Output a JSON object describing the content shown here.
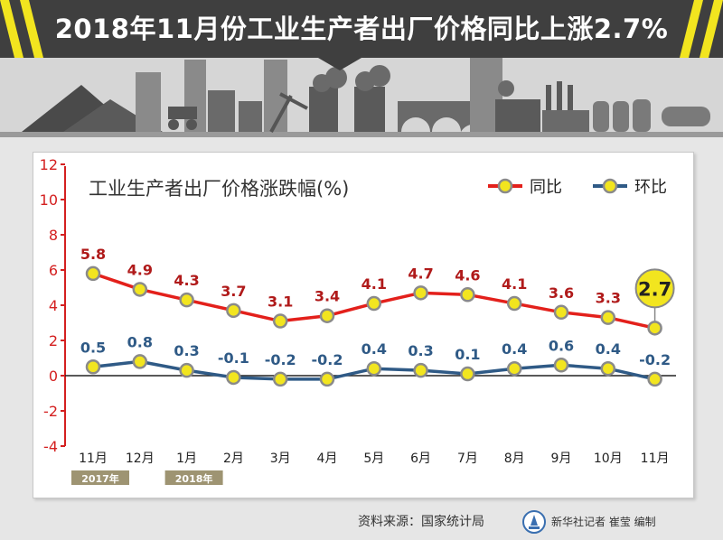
{
  "banner": {
    "title": "2018年11月份工业生产者出厂价格同比上涨2.7%"
  },
  "colors": {
    "banner_bg": "#3f3f3f",
    "accent_yellow": "#f2e51f",
    "series_yoy": "#e3201b",
    "series_mom": "#2f5a86",
    "axis_red": "#d42020",
    "label_red": "#b01a1a",
    "label_blue": "#2f5a86"
  },
  "chart_data": {
    "type": "line",
    "title": "工业生产者出厂价格涨跌幅(%)",
    "ylim": [
      -4,
      12
    ],
    "yticks": [
      "12",
      "10",
      "8",
      "6",
      "4",
      "2",
      "0",
      "-2",
      "-4"
    ],
    "categories": [
      "11月",
      "12月",
      "1月",
      "2月",
      "3月",
      "4月",
      "5月",
      "6月",
      "7月",
      "8月",
      "9月",
      "10月",
      "11月"
    ],
    "year_tags": [
      {
        "label": "2017年",
        "category_index": 0
      },
      {
        "label": "2018年",
        "category_index": 2
      }
    ],
    "series": [
      {
        "name": "同比",
        "values": [
          5.8,
          4.9,
          4.3,
          3.7,
          3.1,
          3.4,
          4.1,
          4.7,
          4.6,
          4.1,
          3.6,
          3.3,
          2.7
        ],
        "labels": [
          "5.8",
          "4.9",
          "4.3",
          "3.7",
          "3.1",
          "3.4",
          "4.1",
          "4.7",
          "4.6",
          "4.1",
          "3.6",
          "3.3",
          "2.7"
        ]
      },
      {
        "name": "环比",
        "values": [
          0.5,
          0.8,
          0.3,
          -0.1,
          -0.2,
          -0.2,
          0.4,
          0.3,
          0.1,
          0.4,
          0.6,
          0.4,
          -0.2
        ],
        "labels": [
          "0.5",
          "0.8",
          "0.3",
          "-0.1",
          "-0.2",
          "-0.2",
          "0.4",
          "0.3",
          "0.1",
          "0.4",
          "0.6",
          "0.4",
          "-0.2"
        ]
      }
    ],
    "highlight": {
      "series": "同比",
      "index": 12,
      "label": "2.7"
    },
    "legend": "top-right",
    "grid": false
  },
  "footer": {
    "source": "资料来源：国家统计局",
    "credit": "新华社记者 崔莹 编制"
  }
}
